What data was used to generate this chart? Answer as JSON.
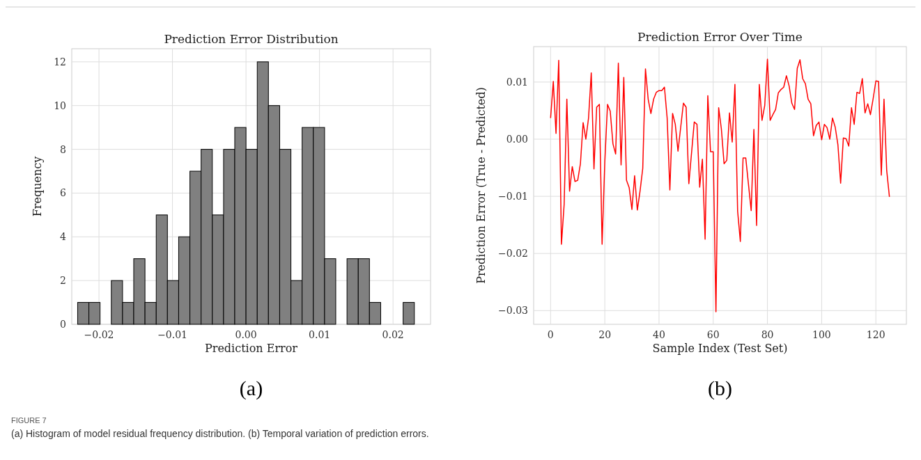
{
  "chart_data": [
    {
      "type": "histogram",
      "title": "Prediction Error Distribution",
      "xlabel": "Prediction Error",
      "ylabel": "Frequency",
      "color": "#808080",
      "grid": true,
      "bins": [
        -0.0229,
        -0.02137,
        -0.01985,
        -0.01832,
        -0.01679,
        -0.01527,
        -0.01374,
        -0.01221,
        -0.01069,
        -0.00916,
        -0.00763,
        -0.00611,
        -0.00458,
        -0.00305,
        -0.00153,
        0.0,
        0.00153,
        0.00305,
        0.00458,
        0.00611,
        0.00763,
        0.00916,
        0.01069,
        0.01221,
        0.01374,
        0.01527,
        0.01679,
        0.01832,
        0.01985,
        0.02137,
        0.0229
      ],
      "values": [
        1,
        1,
        0,
        2,
        1,
        3,
        1,
        5,
        2,
        4,
        7,
        8,
        5,
        8,
        9,
        8,
        12,
        10,
        8,
        2,
        9,
        9,
        3,
        0,
        3,
        3,
        1,
        0,
        0,
        1
      ],
      "xlim": [
        -0.0237,
        0.0251
      ],
      "ylim": [
        0,
        12.6
      ],
      "xticks": [
        {
          "value": -0.02,
          "label": "−0.02"
        },
        {
          "value": -0.01,
          "label": "−0.01"
        },
        {
          "value": 0,
          "label": "0.00"
        },
        {
          "value": 0.01,
          "label": "0.01"
        },
        {
          "value": 0.02,
          "label": "0.02"
        }
      ],
      "yticks": [
        0,
        2,
        4,
        6,
        8,
        10,
        12
      ],
      "annotations": [
        "(a)"
      ]
    },
    {
      "type": "line",
      "title": "Prediction Error Over Time",
      "xlabel": "Sample Index (Test Set)",
      "ylabel": "Prediction Error (True - Predicted)",
      "color": "#ff0000",
      "grid": true,
      "x": [
        0,
        1,
        2,
        3,
        4,
        5,
        6,
        7,
        8,
        9,
        10,
        11,
        12,
        13,
        14,
        15,
        16,
        17,
        18,
        19,
        20,
        21,
        22,
        23,
        24,
        25,
        26,
        27,
        28,
        29,
        30,
        31,
        32,
        33,
        34,
        35,
        36,
        37,
        38,
        39,
        40,
        41,
        42,
        43,
        44,
        45,
        46,
        47,
        48,
        49,
        50,
        51,
        52,
        53,
        54,
        55,
        56,
        57,
        58,
        59,
        60,
        61,
        62,
        63,
        64,
        65,
        66,
        67,
        68,
        69,
        70,
        71,
        72,
        73,
        74,
        75,
        76,
        77,
        78,
        79,
        80,
        81,
        82,
        83,
        84,
        85,
        86,
        87,
        88,
        89,
        90,
        91,
        92,
        93,
        94,
        95,
        96,
        97,
        98,
        99,
        100,
        101,
        102,
        103,
        104,
        105,
        106,
        107,
        108,
        109,
        110,
        111,
        112,
        113,
        114,
        115,
        116,
        117,
        118,
        119,
        120,
        121,
        122,
        123,
        124,
        125
      ],
      "values": [
        0.0037,
        0.0101,
        0.001,
        0.0138,
        -0.0184,
        -0.0114,
        0.007,
        -0.0091,
        -0.0048,
        -0.0074,
        -0.0072,
        -0.0043,
        0.0029,
        0.0,
        0.0037,
        0.0116,
        -0.0052,
        0.0056,
        0.0061,
        -0.0184,
        -0.004,
        0.0061,
        0.0049,
        -0.0008,
        -0.0026,
        0.0133,
        -0.0045,
        0.0108,
        -0.0072,
        -0.0085,
        -0.0123,
        -0.0064,
        -0.0124,
        -0.0091,
        -0.0051,
        0.0123,
        0.007,
        0.0045,
        0.007,
        0.0082,
        0.0085,
        0.0085,
        0.0091,
        0.0037,
        -0.0089,
        0.0045,
        0.0026,
        -0.0021,
        0.0021,
        0.0063,
        0.0056,
        -0.0078,
        -0.0024,
        0.003,
        0.0026,
        -0.0084,
        -0.0035,
        -0.0175,
        0.0076,
        -0.0022,
        -0.0022,
        -0.0302,
        0.0055,
        0.0018,
        -0.0043,
        -0.0037,
        0.0046,
        -0.0005,
        0.0096,
        -0.0126,
        -0.0179,
        -0.0033,
        -0.0033,
        -0.0079,
        -0.0125,
        0.0017,
        -0.0151,
        0.0096,
        0.0033,
        0.0059,
        0.014,
        0.0033,
        0.0043,
        0.0052,
        0.0081,
        0.0087,
        0.0091,
        0.0111,
        0.0093,
        0.0063,
        0.0052,
        0.0124,
        0.0139,
        0.0106,
        0.0097,
        0.007,
        0.0062,
        0.0006,
        0.0024,
        0.003,
        -0.0001,
        0.0026,
        0.002,
        0.0,
        0.0037,
        0.0021,
        -0.001,
        -0.0077,
        0.0002,
        0.0001,
        -0.0012,
        0.0055,
        0.0026,
        0.0082,
        0.008,
        0.0106,
        0.0046,
        0.0062,
        0.0043,
        0.0071,
        0.0102,
        0.0101,
        -0.0063,
        0.007,
        -0.0055,
        -0.0101
      ],
      "xlim": [
        -6.25,
        131.25
      ],
      "ylim": [
        -0.0324,
        0.0162
      ],
      "xticks": [
        0,
        20,
        40,
        60,
        80,
        100,
        120
      ],
      "yticks": [
        {
          "value": -0.03,
          "label": "−0.03"
        },
        {
          "value": -0.02,
          "label": "−0.02"
        },
        {
          "value": -0.01,
          "label": "−0.01"
        },
        {
          "value": 0,
          "label": "0.00"
        },
        {
          "value": 0.01,
          "label": "0.01"
        }
      ],
      "annotations": [
        "(b)",
        "FIGURE 7",
        "(a) Histogram of model residual frequency distribution. (b) Temporal variation of prediction errors."
      ]
    }
  ]
}
